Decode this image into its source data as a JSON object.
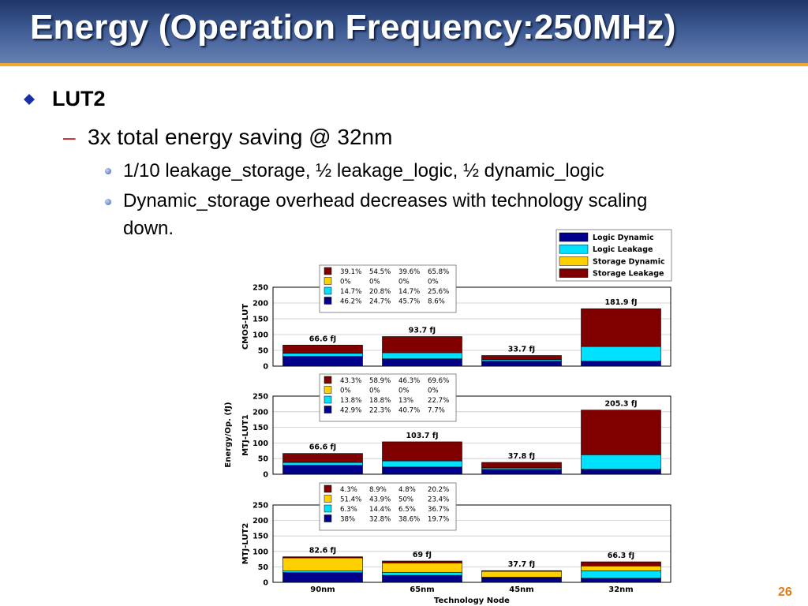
{
  "slide": {
    "title": "Energy (Operation Frequency:250MHz)",
    "bullet_1": "LUT2",
    "bullet_2": "3x total energy saving @ 32nm",
    "bullet_3a": "1/10 leakage_storage, ½ leakage_logic, ½ dynamic_logic",
    "bullet_3b_line1": "Dynamic_storage overhead decreases with technology scaling",
    "bullet_3b_line2": "down.",
    "page_number": "26"
  },
  "colors": {
    "title_bg": "#3d5a92",
    "title_underline": "#f0a830",
    "logic_dynamic": "#00008b",
    "logic_leakage": "#00e0ff",
    "storage_dynamic": "#ffd000",
    "storage_leakage": "#800000",
    "dash": "#c0262c",
    "page_number": "#e07b14"
  },
  "chart_data": {
    "type": "bar",
    "stacked": true,
    "categories": [
      "90nm",
      "65nm",
      "45nm",
      "32nm"
    ],
    "xlabel": "Technology Node",
    "ylabel": "Energy/Op. (fJ)",
    "ylim": [
      0,
      250
    ],
    "yticks": [
      "0",
      "50",
      "100",
      "150",
      "200",
      "250"
    ],
    "legend": {
      "placement": "top-right",
      "entries": [
        "Logic Dynamic",
        "Logic Leakage",
        "Storage Dynamic",
        "Storage Leakage"
      ]
    },
    "panels": [
      {
        "name": "CMOS-LUT",
        "totals": [
          66.6,
          93.7,
          33.7,
          181.9
        ],
        "total_labels": [
          "66.6 fJ",
          "93.7 fJ",
          "33.7 fJ",
          "181.9 fJ"
        ],
        "pct_rows": [
          [
            "39.1%",
            "54.5%",
            "39.6%",
            "65.8%"
          ],
          [
            "0%",
            "0%",
            "0%",
            "0%"
          ],
          [
            "14.7%",
            "20.8%",
            "14.7%",
            "25.6%"
          ],
          [
            "46.2%",
            "24.7%",
            "45.7%",
            "8.6%"
          ]
        ],
        "series": [
          {
            "name": "Logic Dynamic",
            "values": [
              30.8,
              23.1,
              15.4,
              15.6
            ]
          },
          {
            "name": "Logic Leakage",
            "values": [
              9.8,
              19.5,
              5.0,
              46.6
            ]
          },
          {
            "name": "Storage Dynamic",
            "values": [
              0,
              0,
              0,
              0
            ]
          },
          {
            "name": "Storage Leakage",
            "values": [
              26.0,
              51.1,
              13.3,
              119.7
            ]
          }
        ]
      },
      {
        "name": "MTJ-LUT1",
        "totals": [
          66.6,
          103.7,
          37.8,
          205.3
        ],
        "total_labels": [
          "66.6 fJ",
          "103.7 fJ",
          "37.8 fJ",
          "205.3 fJ"
        ],
        "pct_rows": [
          [
            "43.3%",
            "58.9%",
            "46.3%",
            "69.6%"
          ],
          [
            "0%",
            "0%",
            "0%",
            "0%"
          ],
          [
            "13.8%",
            "18.8%",
            "13%",
            "22.7%"
          ],
          [
            "42.9%",
            "22.3%",
            "40.7%",
            "7.7%"
          ]
        ],
        "series": [
          {
            "name": "Logic Dynamic",
            "values": [
              28.6,
              23.1,
              15.4,
              15.8
            ]
          },
          {
            "name": "Logic Leakage",
            "values": [
              9.2,
              19.5,
              4.9,
              46.6
            ]
          },
          {
            "name": "Storage Dynamic",
            "values": [
              0,
              0,
              0,
              0
            ]
          },
          {
            "name": "Storage Leakage",
            "values": [
              28.8,
              61.1,
              17.5,
              142.9
            ]
          }
        ]
      },
      {
        "name": "MTJ-LUT2",
        "totals": [
          82.6,
          69,
          37.7,
          66.3
        ],
        "total_labels": [
          "82.6 fJ",
          "69 fJ",
          "37.7 fJ",
          "66.3 fJ"
        ],
        "pct_rows": [
          [
            "4.3%",
            "8.9%",
            "4.8%",
            "20.2%"
          ],
          [
            "51.4%",
            "43.9%",
            "50%",
            "23.4%"
          ],
          [
            "6.3%",
            "14.4%",
            "6.5%",
            "36.7%"
          ],
          [
            "38%",
            "32.8%",
            "38.6%",
            "19.7%"
          ]
        ],
        "series": [
          {
            "name": "Logic Dynamic",
            "values": [
              31.4,
              22.6,
              14.6,
              13.1
            ]
          },
          {
            "name": "Logic Leakage",
            "values": [
              5.2,
              9.9,
              2.5,
              24.3
            ]
          },
          {
            "name": "Storage Dynamic",
            "values": [
              42.5,
              30.3,
              18.8,
              15.5
            ]
          },
          {
            "name": "Storage Leakage",
            "values": [
              3.6,
              6.1,
              1.8,
              13.4
            ]
          }
        ]
      }
    ]
  }
}
